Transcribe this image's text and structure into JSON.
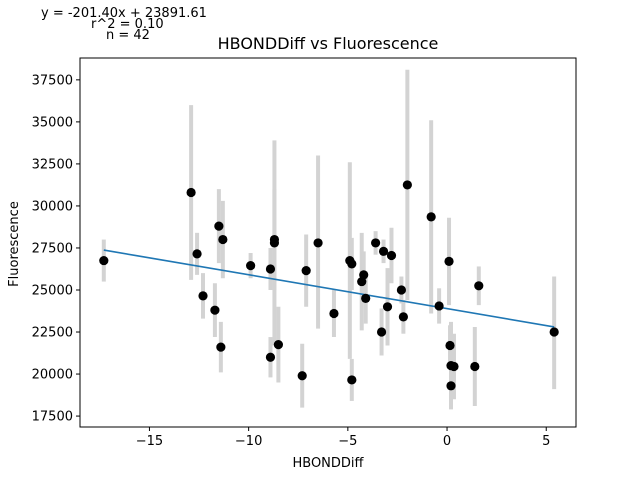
{
  "chart_data": {
    "type": "scatter",
    "title": "HBONDDiff vs Fluorescence",
    "xlabel": "HBONDDiff",
    "ylabel": "Fluorescence",
    "annotations": [
      "y = -201.40x + 23891.61",
      "r^2 = 0.10",
      "n = 42"
    ],
    "xlim": [
      -18.5,
      6.5
    ],
    "ylim": [
      16850,
      38800
    ],
    "xticks": [
      -15,
      -10,
      -5,
      0,
      5
    ],
    "xtick_labels": [
      "−15",
      "−10",
      "−5",
      "0",
      "5"
    ],
    "yticks": [
      17500,
      20000,
      22500,
      25000,
      27500,
      30000,
      32500,
      35000,
      37500
    ],
    "ytick_labels": [
      "17500",
      "20000",
      "22500",
      "25000",
      "27500",
      "30000",
      "32500",
      "35000",
      "37500"
    ],
    "grid": false,
    "regression": {
      "slope": -201.4,
      "intercept": 23891.61,
      "x_range": [
        -17.3,
        5.4
      ]
    },
    "colors": {
      "points": "#000000",
      "error_bars": "#d3d3d3",
      "fit_line": "#1f77b4"
    },
    "points": [
      {
        "x": -17.3,
        "y": 26750,
        "ylo": 25500,
        "yhi": 28000
      },
      {
        "x": -12.9,
        "y": 30800,
        "ylo": 25600,
        "yhi": 36000
      },
      {
        "x": -12.6,
        "y": 27150,
        "ylo": 25900,
        "yhi": 28400
      },
      {
        "x": -12.3,
        "y": 24650,
        "ylo": 23300,
        "yhi": 26000
      },
      {
        "x": -11.7,
        "y": 23800,
        "ylo": 22200,
        "yhi": 25400
      },
      {
        "x": -11.5,
        "y": 28800,
        "ylo": 26600,
        "yhi": 31000
      },
      {
        "x": -11.4,
        "y": 21600,
        "ylo": 20100,
        "yhi": 23100
      },
      {
        "x": -11.3,
        "y": 28000,
        "ylo": 25700,
        "yhi": 30300
      },
      {
        "x": -9.9,
        "y": 26450,
        "ylo": 25700,
        "yhi": 27200
      },
      {
        "x": -8.9,
        "y": 26250,
        "ylo": 25000,
        "yhi": 27500
      },
      {
        "x": -8.9,
        "y": 21000,
        "ylo": 19800,
        "yhi": 22200
      },
      {
        "x": -8.7,
        "y": 28000,
        "ylo": 25000,
        "yhi": 31000
      },
      {
        "x": -8.7,
        "y": 27800,
        "ylo": 21700,
        "yhi": 33900
      },
      {
        "x": -8.5,
        "y": 21750,
        "ylo": 19500,
        "yhi": 24000
      },
      {
        "x": -7.3,
        "y": 19900,
        "ylo": 18000,
        "yhi": 21800
      },
      {
        "x": -7.1,
        "y": 26150,
        "ylo": 24000,
        "yhi": 28300
      },
      {
        "x": -6.5,
        "y": 27800,
        "ylo": 22700,
        "yhi": 33000
      },
      {
        "x": -5.7,
        "y": 23600,
        "ylo": 22200,
        "yhi": 25000
      },
      {
        "x": -4.9,
        "y": 26750,
        "ylo": 20900,
        "yhi": 32600
      },
      {
        "x": -4.8,
        "y": 26550,
        "ylo": 25000,
        "yhi": 28100
      },
      {
        "x": -4.8,
        "y": 19650,
        "ylo": 18400,
        "yhi": 20900
      },
      {
        "x": -4.3,
        "y": 25500,
        "ylo": 22600,
        "yhi": 28400
      },
      {
        "x": -4.2,
        "y": 25900,
        "ylo": 24500,
        "yhi": 27300
      },
      {
        "x": -4.1,
        "y": 24500,
        "ylo": 23000,
        "yhi": 26000
      },
      {
        "x": -3.6,
        "y": 27800,
        "ylo": 27100,
        "yhi": 28500
      },
      {
        "x": -3.3,
        "y": 22500,
        "ylo": 21100,
        "yhi": 23900
      },
      {
        "x": -3.2,
        "y": 27300,
        "ylo": 26600,
        "yhi": 28000
      },
      {
        "x": -3.0,
        "y": 24000,
        "ylo": 21700,
        "yhi": 26300
      },
      {
        "x": -2.8,
        "y": 27050,
        "ylo": 25400,
        "yhi": 28700
      },
      {
        "x": -2.3,
        "y": 25000,
        "ylo": 24200,
        "yhi": 25800
      },
      {
        "x": -2.2,
        "y": 23400,
        "ylo": 22400,
        "yhi": 24400
      },
      {
        "x": -2.0,
        "y": 31250,
        "ylo": 24400,
        "yhi": 38100
      },
      {
        "x": -0.8,
        "y": 29350,
        "ylo": 23600,
        "yhi": 35100
      },
      {
        "x": -0.4,
        "y": 24050,
        "ylo": 23000,
        "yhi": 25100
      },
      {
        "x": 0.1,
        "y": 26700,
        "ylo": 24100,
        "yhi": 29300
      },
      {
        "x": 0.15,
        "y": 21700,
        "ylo": 20500,
        "yhi": 22900
      },
      {
        "x": 0.2,
        "y": 20500,
        "ylo": 17900,
        "yhi": 23100
      },
      {
        "x": 0.2,
        "y": 19300,
        "ylo": 18300,
        "yhi": 20300
      },
      {
        "x": 0.35,
        "y": 20450,
        "ylo": 18500,
        "yhi": 22400
      },
      {
        "x": 1.4,
        "y": 20450,
        "ylo": 18100,
        "yhi": 22800
      },
      {
        "x": 1.6,
        "y": 25250,
        "ylo": 24100,
        "yhi": 26400
      },
      {
        "x": 5.4,
        "y": 22500,
        "ylo": 19100,
        "yhi": 25800
      }
    ]
  }
}
